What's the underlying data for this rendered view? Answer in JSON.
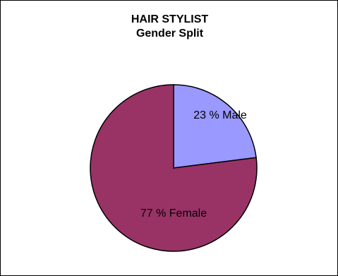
{
  "chart_data": {
    "type": "pie",
    "title": "HAIR STYLIST",
    "subtitle": "Gender Split",
    "slices": [
      {
        "label": "23 % Male",
        "value": 23,
        "color": "#9999ff"
      },
      {
        "label": "77 % Female",
        "value": 77,
        "color": "#993366"
      }
    ]
  }
}
